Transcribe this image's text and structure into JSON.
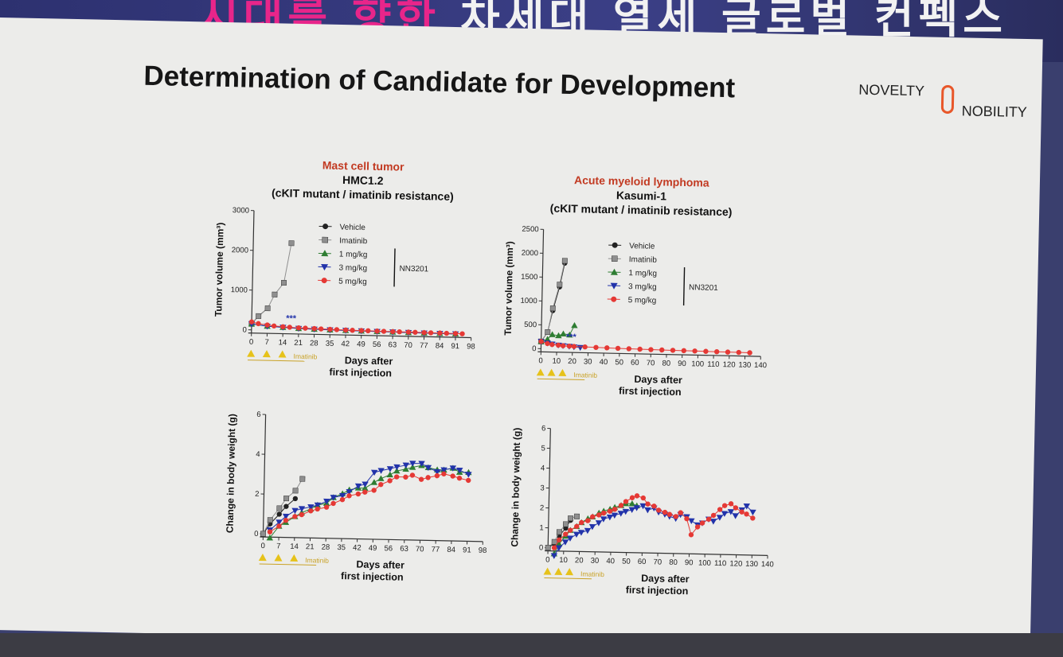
{
  "banner": {
    "text_prefix": "시대를 향한",
    "text_main": "차세대 열세 글로벌 컨펙스",
    "accent": "#e8258a",
    "background": "#3b3f86"
  },
  "slide": {
    "title": "Determination of Candidate for Development",
    "logo": {
      "word1": "NOVELTY",
      "word2": "NOBILITY",
      "color": "#e8572a"
    }
  },
  "panels": [
    {
      "disease": "Mast cell tumor",
      "cell_line": "HMC1.2",
      "note": "(cKIT mutant / imatinib resistance)"
    },
    {
      "disease": "Acute myeloid lymphoma",
      "cell_line": "Kasumi-1",
      "note": "(cKIT mutant / imatinib resistance)"
    }
  ],
  "chart_data": [
    {
      "type": "scatter",
      "title": "",
      "xlabel": "Days after first injection",
      "ylabel": "Tumor volume (mm³)",
      "xlim": [
        0,
        98
      ],
      "ylim": [
        0,
        3000
      ],
      "xticks": [
        0,
        7,
        14,
        21,
        28,
        35,
        42,
        49,
        56,
        63,
        70,
        77,
        84,
        91,
        98
      ],
      "yticks": [
        0,
        1000,
        2000,
        3000
      ],
      "dosing_days": [
        0,
        7,
        14
      ],
      "dosing_label": "Imatinib",
      "significance_label": "***",
      "legend": {
        "placement": "top-center",
        "group_label": "NN3201"
      },
      "series": [
        {
          "name": "Vehicle",
          "marker": "circle",
          "color": "#222222",
          "x": [
            0,
            3,
            7
          ],
          "y": [
            150,
            350,
            550
          ]
        },
        {
          "name": "Imatinib",
          "marker": "square",
          "color": "#8f8f8f",
          "x": [
            0,
            3,
            7,
            10,
            14,
            17
          ],
          "y": [
            150,
            350,
            550,
            900,
            1200,
            2200
          ]
        },
        {
          "name": "1 mg/kg",
          "marker": "triangle-up",
          "color": "#2e7d32",
          "x": [
            0,
            7,
            14,
            21,
            28,
            35,
            42,
            49,
            56,
            63,
            70,
            77,
            84,
            91
          ],
          "y": [
            150,
            100,
            80,
            60,
            50,
            40,
            35,
            30,
            25,
            20,
            15,
            10,
            8,
            5
          ]
        },
        {
          "name": "3 mg/kg",
          "marker": "triangle-down",
          "color": "#2233aa",
          "x": [
            0,
            7,
            14,
            21,
            28,
            35,
            42,
            49,
            56,
            63,
            70,
            77,
            84,
            91
          ],
          "y": [
            150,
            100,
            80,
            60,
            50,
            40,
            35,
            30,
            25,
            20,
            15,
            10,
            8,
            5
          ]
        },
        {
          "name": "5 mg/kg",
          "marker": "circle",
          "color": "#e53935",
          "x": [
            0,
            3,
            7,
            10,
            14,
            17,
            21,
            24,
            28,
            31,
            35,
            38,
            42,
            45,
            49,
            52,
            56,
            59,
            63,
            66,
            70,
            73,
            77,
            80,
            84,
            87,
            91,
            94
          ],
          "y": [
            200,
            160,
            130,
            110,
            95,
            85,
            75,
            70,
            65,
            60,
            55,
            50,
            45,
            42,
            40,
            38,
            35,
            32,
            30,
            28,
            26,
            24,
            22,
            20,
            18,
            16,
            14,
            12
          ]
        }
      ]
    },
    {
      "type": "scatter",
      "title": "",
      "xlabel": "Days after first injection",
      "ylabel": "Tumor volume (mm³)",
      "xlim": [
        0,
        140
      ],
      "ylim": [
        0,
        2500
      ],
      "xticks": [
        0,
        10,
        20,
        30,
        40,
        50,
        60,
        70,
        80,
        90,
        100,
        110,
        120,
        130,
        140
      ],
      "yticks": [
        0,
        500,
        1000,
        1500,
        2000,
        2500
      ],
      "dosing_days": [
        0,
        7,
        14
      ],
      "dosing_label": "Imatinib",
      "significance_label": "***",
      "legend": {
        "placement": "top-center",
        "group_label": "NN3201"
      },
      "series": [
        {
          "name": "Vehicle",
          "marker": "circle",
          "color": "#222222",
          "x": [
            0,
            4,
            7,
            11,
            14
          ],
          "y": [
            150,
            350,
            800,
            1300,
            1800
          ]
        },
        {
          "name": "Imatinib",
          "marker": "square",
          "color": "#8f8f8f",
          "x": [
            0,
            4,
            7,
            11,
            14
          ],
          "y": [
            150,
            350,
            850,
            1350,
            1850
          ]
        },
        {
          "name": "1 mg/kg",
          "marker": "triangle-up",
          "color": "#2e7d32",
          "x": [
            0,
            4,
            7,
            11,
            14,
            18,
            21
          ],
          "y": [
            150,
            200,
            300,
            280,
            320,
            300,
            500
          ]
        },
        {
          "name": "3 mg/kg",
          "marker": "triangle-down",
          "color": "#2233aa",
          "x": [
            0,
            4,
            7,
            11,
            14,
            18,
            21,
            25
          ],
          "y": [
            150,
            120,
            100,
            80,
            70,
            60,
            50,
            40
          ]
        },
        {
          "name": "5 mg/kg",
          "marker": "circle",
          "color": "#e53935",
          "x": [
            0,
            4,
            7,
            11,
            14,
            18,
            21,
            28,
            35,
            42,
            49,
            56,
            63,
            70,
            77,
            84,
            91,
            98,
            105,
            112,
            119,
            126,
            133
          ],
          "y": [
            150,
            110,
            90,
            80,
            70,
            65,
            60,
            55,
            50,
            45,
            40,
            36,
            32,
            28,
            25,
            22,
            20,
            18,
            15,
            12,
            10,
            8,
            5
          ]
        }
      ]
    },
    {
      "type": "scatter",
      "title": "",
      "xlabel": "Days after first injection",
      "ylabel": "Change in body weight (g)",
      "xlim": [
        0,
        98
      ],
      "ylim": [
        0,
        6
      ],
      "xticks": [
        0,
        7,
        14,
        21,
        28,
        35,
        42,
        49,
        56,
        63,
        70,
        77,
        84,
        91,
        98
      ],
      "yticks": [
        0,
        2,
        4,
        6
      ],
      "dosing_days": [
        0,
        7,
        14
      ],
      "dosing_label": "Imatinib",
      "series": [
        {
          "name": "Vehicle",
          "marker": "circle",
          "color": "#222222",
          "x": [
            0,
            3,
            7,
            10,
            14
          ],
          "y": [
            0,
            0.5,
            1.0,
            1.4,
            1.8
          ]
        },
        {
          "name": "Imatinib",
          "marker": "square",
          "color": "#8f8f8f",
          "x": [
            0,
            3,
            7,
            10,
            14,
            17
          ],
          "y": [
            0,
            0.7,
            1.3,
            1.8,
            2.2,
            2.8
          ]
        },
        {
          "name": "1 mg/kg",
          "marker": "triangle-up",
          "color": "#2e7d32",
          "x": [
            3,
            7,
            10,
            14,
            17,
            21,
            24,
            28,
            31,
            35,
            38,
            42,
            45,
            49,
            52,
            56,
            59,
            63,
            66,
            70,
            73,
            77,
            80,
            84,
            87,
            91
          ],
          "y": [
            -0.2,
            0.4,
            0.6,
            0.9,
            1.1,
            1.3,
            1.5,
            1.6,
            1.9,
            2.1,
            2.3,
            2.4,
            2.4,
            2.7,
            2.9,
            3.1,
            3.3,
            3.4,
            3.5,
            3.6,
            3.5,
            3.4,
            3.4,
            3.5,
            3.3,
            3.3
          ]
        },
        {
          "name": "3 mg/kg",
          "marker": "triangle-down",
          "color": "#2233aa",
          "x": [
            3,
            7,
            10,
            14,
            17,
            21,
            24,
            28,
            31,
            35,
            38,
            42,
            45,
            49,
            52,
            56,
            59,
            63,
            66,
            70,
            73,
            77,
            80,
            84,
            87,
            91
          ],
          "y": [
            0.2,
            0.6,
            0.9,
            1.2,
            1.3,
            1.4,
            1.5,
            1.7,
            1.9,
            2.0,
            2.2,
            2.5,
            2.6,
            3.2,
            3.3,
            3.4,
            3.5,
            3.6,
            3.7,
            3.7,
            3.5,
            3.3,
            3.4,
            3.5,
            3.4,
            3.2
          ]
        },
        {
          "name": "5 mg/kg",
          "marker": "circle",
          "color": "#e53935",
          "x": [
            3,
            7,
            10,
            14,
            17,
            21,
            24,
            28,
            31,
            35,
            38,
            42,
            45,
            49,
            52,
            56,
            59,
            63,
            66,
            70,
            73,
            77,
            80,
            84,
            87,
            91
          ],
          "y": [
            0.1,
            0.4,
            0.7,
            0.9,
            1.0,
            1.2,
            1.3,
            1.4,
            1.6,
            1.8,
            2.0,
            2.1,
            2.2,
            2.3,
            2.6,
            2.8,
            3.0,
            3.0,
            3.1,
            2.9,
            3.0,
            3.1,
            3.2,
            3.1,
            3.0,
            2.9
          ]
        }
      ]
    },
    {
      "type": "scatter",
      "title": "",
      "xlabel": "Days after first injection",
      "ylabel": "Change in body weight (g)",
      "xlim": [
        0,
        140
      ],
      "ylim": [
        0,
        6
      ],
      "xticks": [
        0,
        10,
        20,
        30,
        40,
        50,
        60,
        70,
        80,
        90,
        100,
        110,
        120,
        130,
        140
      ],
      "yticks": [
        0,
        1,
        2,
        3,
        4,
        5,
        6
      ],
      "dosing_days": [
        0,
        7,
        14
      ],
      "dosing_label": "Imatinib",
      "series": [
        {
          "name": "Vehicle",
          "marker": "circle",
          "color": "#222222",
          "x": [
            0,
            4,
            7,
            11,
            14
          ],
          "y": [
            0,
            0.2,
            0.6,
            1.0,
            1.4
          ]
        },
        {
          "name": "Imatinib",
          "marker": "square",
          "color": "#8f8f8f",
          "x": [
            0,
            4,
            7,
            11,
            14,
            18
          ],
          "y": [
            0,
            0.3,
            0.8,
            1.2,
            1.5,
            1.6
          ]
        },
        {
          "name": "1 mg/kg",
          "marker": "triangle-up",
          "color": "#2e7d32",
          "x": [
            4,
            7,
            11,
            14,
            18,
            21,
            25,
            28,
            32,
            35,
            39,
            42,
            46,
            49,
            53,
            56
          ],
          "y": [
            -0.3,
            0.2,
            0.6,
            0.9,
            1.1,
            1.3,
            1.5,
            1.6,
            1.8,
            1.9,
            2.0,
            2.1,
            2.2,
            2.3,
            2.3,
            2.2
          ]
        },
        {
          "name": "3 mg/kg",
          "marker": "triangle-down",
          "color": "#2233aa",
          "x": [
            4,
            7,
            11,
            14,
            18,
            21,
            25,
            28,
            32,
            35,
            39,
            42,
            46,
            49,
            53,
            56,
            60,
            63,
            67,
            70,
            74,
            77,
            81,
            84,
            88,
            91,
            95,
            98,
            102,
            105,
            109,
            112,
            116,
            119,
            123,
            126,
            130
          ],
          "y": [
            -0.4,
            0.0,
            0.3,
            0.5,
            0.7,
            0.8,
            0.9,
            1.1,
            1.3,
            1.5,
            1.6,
            1.7,
            1.8,
            1.9,
            2.0,
            2.1,
            2.2,
            2.0,
            2.1,
            1.9,
            1.8,
            1.7,
            1.6,
            1.8,
            1.7,
            1.5,
            1.3,
            1.4,
            1.6,
            1.5,
            1.7,
            1.9,
            2.0,
            1.8,
            2.1,
            2.3,
            2.0
          ]
        },
        {
          "name": "5 mg/kg",
          "marker": "circle",
          "color": "#e53935",
          "x": [
            4,
            7,
            11,
            14,
            18,
            21,
            25,
            28,
            32,
            35,
            39,
            42,
            46,
            49,
            53,
            56,
            60,
            63,
            67,
            70,
            74,
            77,
            81,
            84,
            88,
            91,
            95,
            98,
            102,
            105,
            109,
            112,
            116,
            119,
            123,
            126,
            130
          ],
          "y": [
            0.0,
            0.4,
            0.7,
            0.9,
            1.1,
            1.3,
            1.4,
            1.6,
            1.7,
            1.8,
            1.9,
            2.0,
            2.2,
            2.4,
            2.6,
            2.7,
            2.6,
            2.3,
            2.2,
            2.0,
            1.9,
            1.8,
            1.7,
            1.9,
            1.6,
            0.8,
            1.2,
            1.4,
            1.6,
            1.8,
            2.1,
            2.3,
            2.4,
            2.2,
            2.0,
            1.9,
            1.7
          ]
        }
      ]
    }
  ]
}
